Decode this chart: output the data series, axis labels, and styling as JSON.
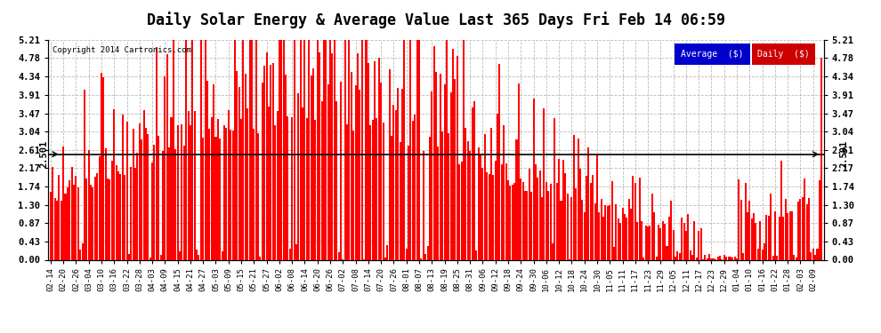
{
  "title": "Daily Solar Energy & Average Value Last 365 Days Fri Feb 14 06:59",
  "copyright": "Copyright 2014 Cartronics.com",
  "average_value": 2.501,
  "average_label": "2.501",
  "yticks": [
    0.0,
    0.43,
    0.87,
    1.3,
    1.74,
    2.17,
    2.61,
    3.04,
    3.47,
    3.91,
    4.34,
    4.78,
    5.21
  ],
  "ymax": 5.21,
  "ymin": 0.0,
  "bar_color": "#ff0000",
  "avg_line_color": "#000099",
  "background_color": "#ffffff",
  "grid_color": "#aaaaaa",
  "title_fontsize": 12,
  "legend_avg_color": "#0000cc",
  "legend_daily_color": "#cc0000",
  "xtick_labels": [
    "02-14",
    "02-20",
    "02-26",
    "03-04",
    "03-10",
    "03-16",
    "03-22",
    "03-28",
    "04-03",
    "04-09",
    "04-15",
    "04-21",
    "04-27",
    "05-03",
    "05-09",
    "05-15",
    "05-21",
    "05-27",
    "06-02",
    "06-08",
    "06-14",
    "06-20",
    "06-26",
    "07-02",
    "07-08",
    "07-14",
    "07-20",
    "07-26",
    "08-01",
    "08-07",
    "08-13",
    "08-19",
    "08-25",
    "08-31",
    "09-06",
    "09-12",
    "09-18",
    "09-24",
    "09-30",
    "10-06",
    "10-12",
    "10-18",
    "10-24",
    "10-30",
    "11-05",
    "11-11",
    "11-17",
    "11-23",
    "11-29",
    "12-05",
    "12-11",
    "12-17",
    "12-23",
    "12-29",
    "01-04",
    "01-10",
    "01-16",
    "01-22",
    "01-28",
    "02-03",
    "02-09"
  ],
  "num_bars": 365,
  "seed": 42
}
